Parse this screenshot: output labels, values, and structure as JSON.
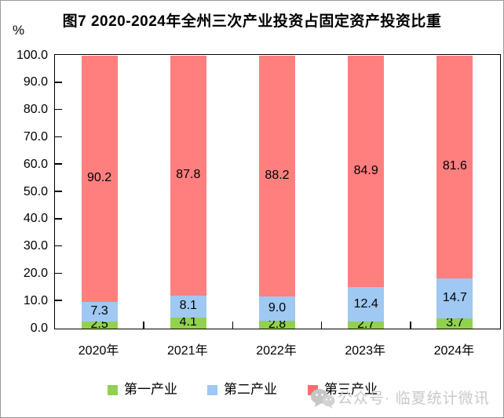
{
  "page": {
    "title": "图7 2020-2024年全州三次产业投资占固定资产投资比重",
    "y_unit_label": "%"
  },
  "chart_data": {
    "type": "bar",
    "stacked": true,
    "title": "图7 2020-2024年全州三次产业投资占固定资产投资比重",
    "categories": [
      "2020年",
      "2021年",
      "2022年",
      "2023年",
      "2024年"
    ],
    "series": [
      {
        "name": "第一产业",
        "color": "#92D050",
        "values": [
          2.5,
          4.1,
          2.8,
          2.7,
          3.7
        ]
      },
      {
        "name": "第二产业",
        "color": "#9FC8F2",
        "values": [
          7.3,
          8.1,
          9.0,
          12.4,
          14.7
        ]
      },
      {
        "name": "第三产业",
        "color": "#FF7F7F",
        "values": [
          90.2,
          87.8,
          88.2,
          84.9,
          81.6
        ]
      }
    ],
    "ylabel": "%",
    "ylim": [
      0,
      100
    ],
    "y_tick_step": 10,
    "y_tick_labels": [
      "0.0",
      "10.0",
      "20.0",
      "30.0",
      "40.0",
      "50.0",
      "60.0",
      "70.0",
      "80.0",
      "90.0",
      "100.0"
    ],
    "grid": false,
    "value_labels_visible": true,
    "legend_position": "bottom"
  },
  "legend": {
    "items": [
      {
        "label": "第一产业",
        "color": "#92D050"
      },
      {
        "label": "第二产业",
        "color": "#9FC8F2"
      },
      {
        "label": "第三产业",
        "color": "#FB6D6D"
      }
    ]
  },
  "watermark": {
    "icon": "wechat-icon",
    "text": "公众号· 临夏统计微讯"
  }
}
